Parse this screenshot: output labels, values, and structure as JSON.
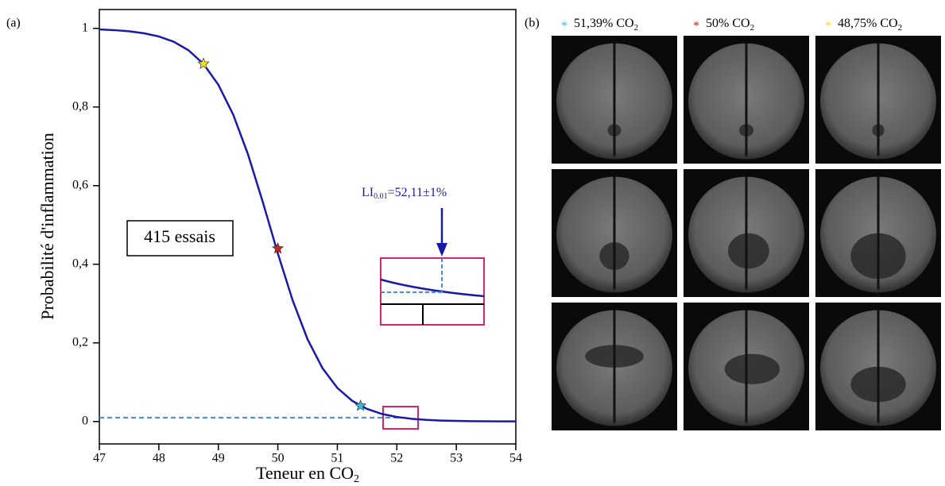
{
  "chart_data": {
    "type": "line",
    "panel_label": "(a)",
    "x_label": "Teneur en CO",
    "x_label_sub": "2",
    "y_label": "Probabilité d'inflammation",
    "xlim": [
      47,
      54
    ],
    "ylim": [
      -0.057,
      1.048
    ],
    "xticks": [
      47,
      48,
      49,
      50,
      51,
      52,
      53,
      54
    ],
    "yticks": [
      0,
      {
        "value": 0.2,
        "label": "0,2"
      },
      {
        "value": 0.4,
        "label": "0,4"
      },
      {
        "value": 0.6,
        "label": "0,6"
      },
      {
        "value": 0.8,
        "label": "0,8"
      },
      1
    ],
    "x": [
      47,
      47.25,
      47.5,
      47.75,
      48,
      48.25,
      48.5,
      48.75,
      49,
      49.25,
      49.5,
      49.75,
      50,
      50.25,
      50.5,
      50.75,
      51,
      51.25,
      51.5,
      51.75,
      52,
      52.25,
      52.5,
      52.75,
      53,
      53.25,
      53.5,
      53.75,
      54
    ],
    "series": [
      {
        "color": "#1a1aa8",
        "values": [
          0.9974,
          0.9956,
          0.9927,
          0.9877,
          0.9795,
          0.9661,
          0.9442,
          0.9096,
          0.8568,
          0.7806,
          0.6789,
          0.557,
          0.4277,
          0.3077,
          0.209,
          0.1358,
          0.0854,
          0.0526,
          0.032,
          0.0192,
          0.0115,
          0.0069,
          0.0041,
          0.0024,
          0.0015,
          0.0009,
          0.0005,
          0.0003,
          0.0002
        ]
      }
    ],
    "points": {
      "x": [
        48.75,
        50,
        51.39
      ],
      "values": [
        0.91,
        0.44,
        0.04
      ],
      "colors": [
        "#f2e226",
        "#d42020",
        "#33bde6"
      ]
    },
    "threshold": {
      "x": 52.11,
      "value": 0.01,
      "color": "#3a8fe8"
    },
    "annotation": {
      "prefix": "LI",
      "sub": "0.01",
      "text": "=52,11±1%",
      "color": "#1a1aa8"
    },
    "sample_box": "415 essais"
  },
  "photos": {
    "panel_label": "(b)",
    "headers": [
      {
        "marker": "*",
        "color": "#33bde6",
        "text": "51,39% CO",
        "sub": "2"
      },
      {
        "marker": "*",
        "color": "#d42020",
        "text": "50% CO",
        "sub": "2"
      },
      {
        "marker": "*",
        "color": "#f2e226",
        "text": "48,75% CO",
        "sub": "2"
      }
    ]
  }
}
